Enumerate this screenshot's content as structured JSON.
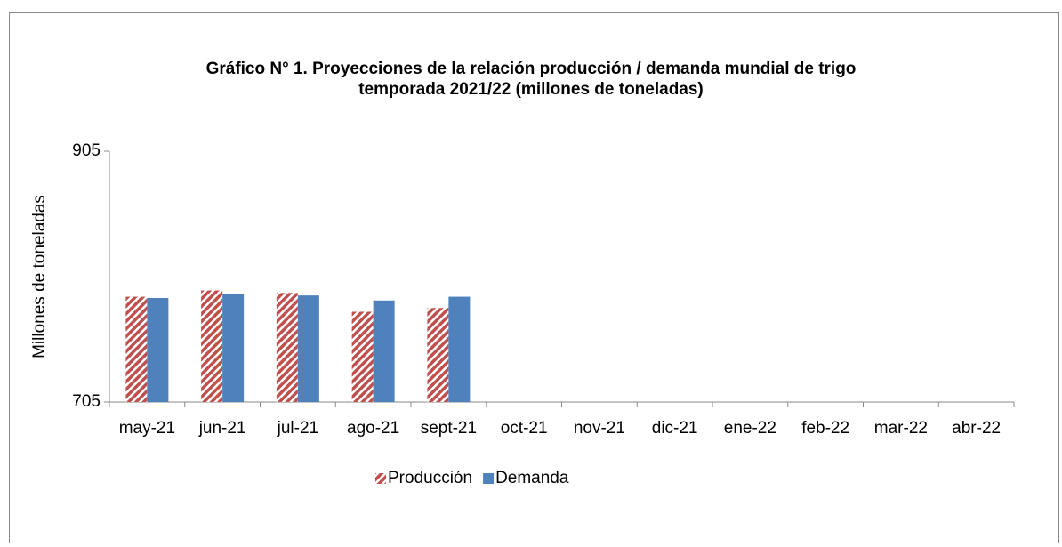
{
  "chart_data": {
    "type": "bar",
    "title": [
      "Gráfico N° 1. Proyecciones de la relación producción / demanda mundial de trigo",
      "temporada 2021/22  (millones de toneladas)"
    ],
    "y_label": "Millones de toneladas",
    "categories": [
      "may-21",
      "jun-21",
      "jul-21",
      "ago-21",
      "sept-21",
      "oct-21",
      "nov-21",
      "dic-21",
      "ene-22",
      "feb-22",
      "mar-22",
      "abr-22"
    ],
    "series": [
      {
        "name": "Producción",
        "color": "#c0504d",
        "hatch": true,
        "values": [
          789,
          794,
          792,
          777,
          780,
          null,
          null,
          null,
          null,
          null,
          null,
          null
        ]
      },
      {
        "name": "Demanda",
        "color": "#4f81bd",
        "hatch": false,
        "values": [
          788,
          791,
          790,
          786,
          789,
          null,
          null,
          null,
          null,
          null,
          null,
          null
        ]
      }
    ],
    "ylim": [
      705,
      905
    ],
    "yticks": [
      705,
      905
    ],
    "grid": false,
    "legend": "bottom"
  }
}
